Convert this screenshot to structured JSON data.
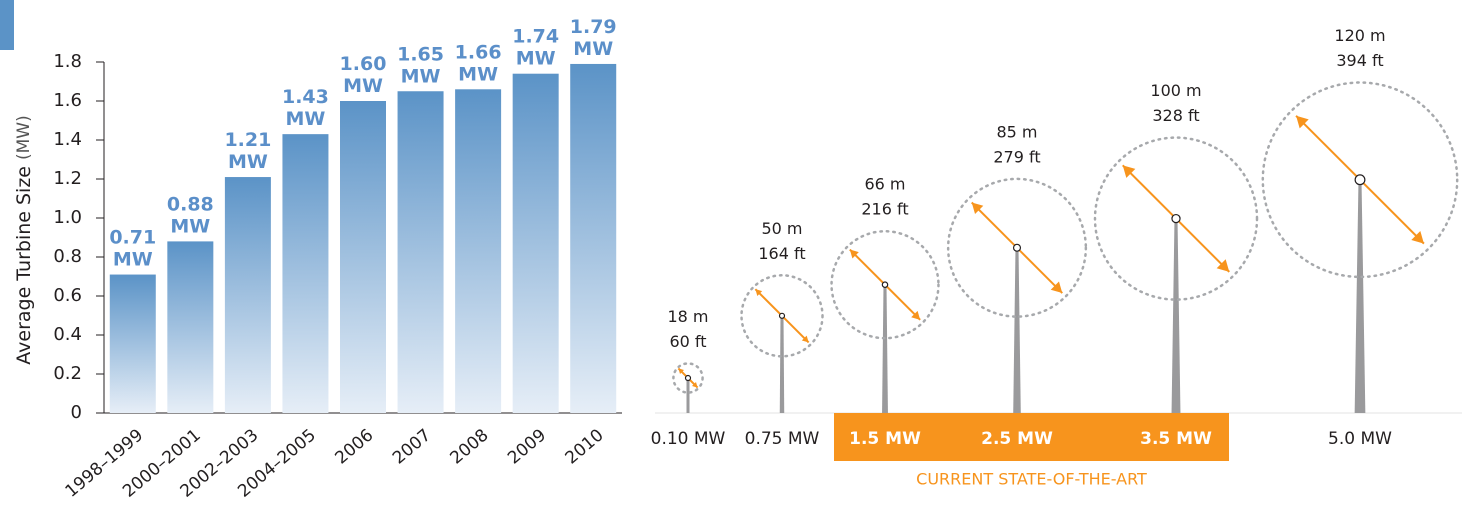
{
  "chart_data": [
    {
      "type": "bar",
      "y_label": "Average Turbine Size",
      "y_unit": "(MW)",
      "categories": [
        "1998–1999",
        "2000–2001",
        "2002–2003",
        "2004–2005",
        "2006",
        "2007",
        "2008",
        "2009",
        "2010"
      ],
      "values": [
        0.71,
        0.88,
        1.21,
        1.43,
        1.6,
        1.65,
        1.66,
        1.74,
        1.79
      ],
      "value_labels": [
        "0.71 MW",
        "0.88 MW",
        "1.21 MW",
        "1.43 MW",
        "1.60 MW",
        "1.65 MW",
        "1.66 MW",
        "1.74 MW",
        "1.79 MW"
      ],
      "color": "#5b93c7",
      "label_color": "#5b8fc9",
      "ylim": [
        0,
        1.8
      ],
      "yticks": [
        0,
        0.2,
        0.4,
        0.6,
        0.8,
        {
          "value": 1,
          "label": "1.0"
        },
        1.2,
        1.4,
        1.6,
        1.8
      ],
      "grid": false
    },
    {
      "type": "turbine",
      "categories": [
        "0.10 MW",
        "0.75 MW",
        "1.5 MW",
        "2.5 MW",
        "3.5 MW",
        "5.0 MW"
      ],
      "values": [
        18,
        50,
        66,
        85,
        100,
        120
      ],
      "value_labels": [
        "18 m",
        "50 m",
        "66 m",
        "85 m",
        "100 m",
        "120 m"
      ],
      "diameter_ft": [
        60,
        164,
        216,
        279,
        328,
        394
      ],
      "diameter_ft_labels": [
        "60 ft",
        "164 ft",
        "216 ft",
        "279 ft",
        "328 ft",
        "394 ft"
      ],
      "highlighted": [
        false,
        false,
        true,
        true,
        true,
        false
      ],
      "highlight_label": "CURRENT STATE-OF-THE-ART",
      "color": "#f7941d",
      "tower_color": "#9a9a9c"
    }
  ]
}
